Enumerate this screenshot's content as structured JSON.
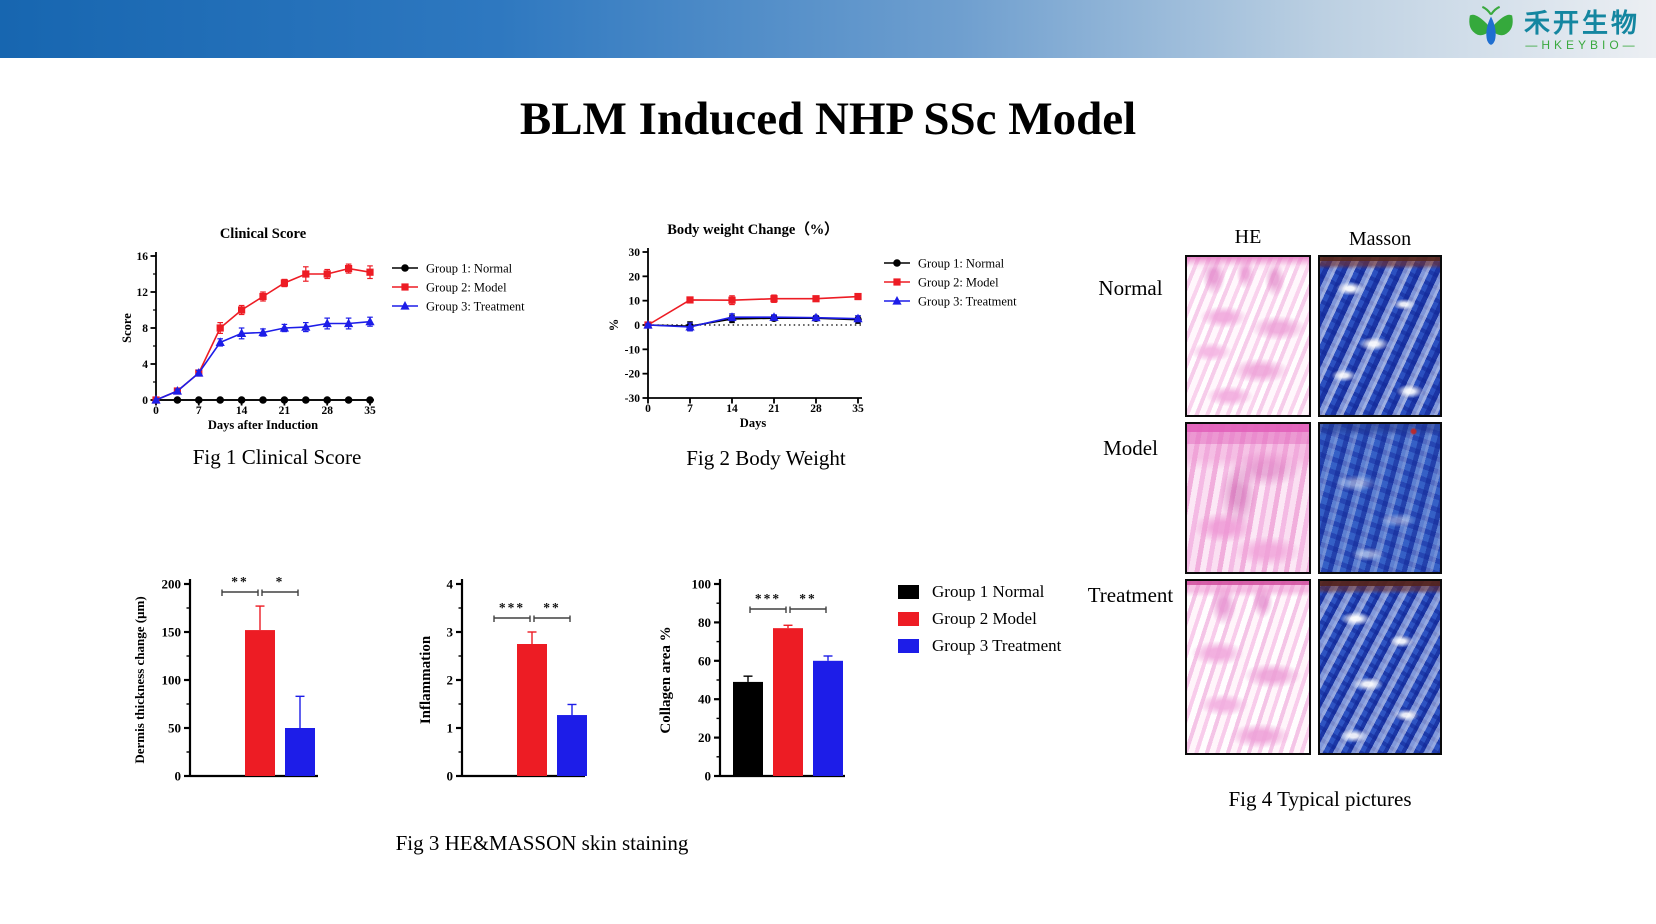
{
  "header": {
    "brand_cn": "禾开生物",
    "brand_en": "—HKEYBIO—"
  },
  "title": "BLM Induced NHP SSc Model",
  "captions": {
    "fig1": "Fig 1 Clinical Score",
    "fig2": "Fig 2 Body Weight",
    "fig3": "Fig 3 HE&MASSON skin staining",
    "fig4": "Fig 4 Typical pictures"
  },
  "colors": {
    "group1_black": "#000000",
    "group2_red": "#ed1c24",
    "group3_blue": "#1d1de8",
    "topbar_left": "#1766b0",
    "topbar_right": "#eceff3",
    "logo_teal": "#1486a0",
    "logo_green": "#3aa93f",
    "sig_gray": "#404040"
  },
  "fig3_legend": [
    {
      "label": "Group 1 Normal",
      "color": "#000000"
    },
    {
      "label": "Group 2 Model",
      "color": "#ed1c24"
    },
    {
      "label": "Group 3 Treatment",
      "color": "#1d1de8"
    }
  ],
  "fig4": {
    "col_headers": [
      "HE",
      "Masson"
    ],
    "row_labels": [
      "Normal",
      "Model",
      "Treatment"
    ]
  },
  "chart_data": [
    {
      "id": "fig1",
      "type": "line",
      "title": "Clinical Score",
      "xlabel": "Days after Induction",
      "ylabel": "Score",
      "xlim": [
        0,
        35
      ],
      "ylim": [
        0,
        16
      ],
      "xticks": [
        0,
        7,
        14,
        21,
        28,
        35
      ],
      "yticks": [
        0,
        4,
        8,
        12,
        16
      ],
      "xminor": [
        3.5,
        10.5,
        17.5,
        24.5,
        31.5
      ],
      "yminor": [
        2,
        6,
        10,
        14
      ],
      "x": [
        0,
        3.5,
        7,
        10.5,
        14,
        17.5,
        21,
        24.5,
        28,
        31.5,
        35
      ],
      "series": [
        {
          "name": "Group 1: Normal",
          "marker": "circle",
          "color": "#000000",
          "values": [
            0,
            0,
            0,
            0,
            0,
            0,
            0,
            0,
            0,
            0,
            0
          ],
          "errors": [
            0,
            0,
            0,
            0,
            0,
            0,
            0,
            0,
            0,
            0,
            0
          ]
        },
        {
          "name": "Group 2: Model",
          "marker": "square",
          "color": "#ed1c24",
          "values": [
            0,
            1,
            3,
            8,
            10,
            11.5,
            13,
            14,
            14,
            14.6,
            14.2
          ],
          "errors": [
            0,
            0.3,
            0.3,
            0.6,
            0.5,
            0.5,
            0.4,
            0.8,
            0.5,
            0.5,
            0.7
          ]
        },
        {
          "name": "Group 3: Treatment",
          "marker": "triangle",
          "color": "#1d1de8",
          "values": [
            0,
            1,
            3,
            6.4,
            7.4,
            7.5,
            8,
            8.1,
            8.5,
            8.5,
            8.7
          ],
          "errors": [
            0,
            0.2,
            0.3,
            0.4,
            0.6,
            0.4,
            0.4,
            0.5,
            0.6,
            0.6,
            0.5
          ]
        }
      ]
    },
    {
      "id": "fig2",
      "type": "line",
      "title": "Body weight Change（%）",
      "xlabel": "Days",
      "ylabel": "%",
      "xlim": [
        0,
        35
      ],
      "ylim": [
        -30,
        30
      ],
      "xticks": [
        0,
        7,
        14,
        21,
        28,
        35
      ],
      "yticks": [
        -30,
        -20,
        -10,
        0,
        10,
        20,
        30
      ],
      "zero_line": true,
      "x": [
        0,
        7,
        14,
        21,
        28,
        35
      ],
      "series": [
        {
          "name": "Group 1: Normal",
          "marker": "circle",
          "color": "#000000",
          "values": [
            0,
            -0.5,
            2.5,
            2.8,
            2.8,
            2.2
          ],
          "errors": [
            0.6,
            1.8,
            1.5,
            1,
            1,
            1.5
          ]
        },
        {
          "name": "Group 2: Model",
          "marker": "square",
          "color": "#ed1c24",
          "values": [
            0,
            10.3,
            10.2,
            10.8,
            10.8,
            11.7
          ],
          "errors": [
            0.5,
            1,
            1.8,
            1.5,
            1,
            1.2
          ]
        },
        {
          "name": "Group 3: Treatment",
          "marker": "triangle",
          "color": "#1d1de8",
          "values": [
            0,
            -0.8,
            3.2,
            3.2,
            3,
            2.6
          ],
          "errors": [
            0.5,
            1.6,
            1.4,
            1,
            0.8,
            1.2
          ]
        }
      ]
    },
    {
      "id": "fig3a",
      "type": "bar",
      "ylabel": "Dermis thickness change (μm)",
      "ylim": [
        0,
        200
      ],
      "yticks": [
        0,
        50,
        100,
        150,
        200
      ],
      "groups": [
        "Group 1 Normal",
        "Group 2 Model",
        "Group 3 Treatment"
      ],
      "colors": [
        "#000000",
        "#ed1c24",
        "#1d1de8"
      ],
      "values": [
        0,
        152,
        50
      ],
      "errors": [
        0,
        25,
        33
      ],
      "significance": [
        {
          "a": 0,
          "b": 1,
          "stars": "**"
        },
        {
          "a": 1,
          "b": 2,
          "stars": "*"
        }
      ]
    },
    {
      "id": "fig3b",
      "type": "bar",
      "ylabel": "Inflammation",
      "ylim": [
        0,
        4
      ],
      "yticks": [
        0,
        1,
        2,
        3,
        4
      ],
      "groups": [
        "Group 1 Normal",
        "Group 2 Model",
        "Group 3 Treatment"
      ],
      "colors": [
        "#000000",
        "#ed1c24",
        "#1d1de8"
      ],
      "values": [
        0,
        2.75,
        1.27
      ],
      "errors": [
        0,
        0.25,
        0.22
      ],
      "significance": [
        {
          "a": 0,
          "b": 1,
          "stars": "***"
        },
        {
          "a": 1,
          "b": 2,
          "stars": "**"
        }
      ]
    },
    {
      "id": "fig3c",
      "type": "bar",
      "ylabel": "Collagen area %",
      "ylim": [
        0,
        100
      ],
      "yticks": [
        0,
        20,
        40,
        60,
        80,
        100
      ],
      "groups": [
        "Group 1 Normal",
        "Group 2 Model",
        "Group 3 Treatment"
      ],
      "colors": [
        "#000000",
        "#ed1c24",
        "#1d1de8"
      ],
      "values": [
        49,
        77,
        60
      ],
      "errors": [
        3,
        1.5,
        2.5
      ],
      "significance": [
        {
          "a": 0,
          "b": 1,
          "stars": "***"
        },
        {
          "a": 1,
          "b": 2,
          "stars": "**"
        }
      ]
    }
  ]
}
